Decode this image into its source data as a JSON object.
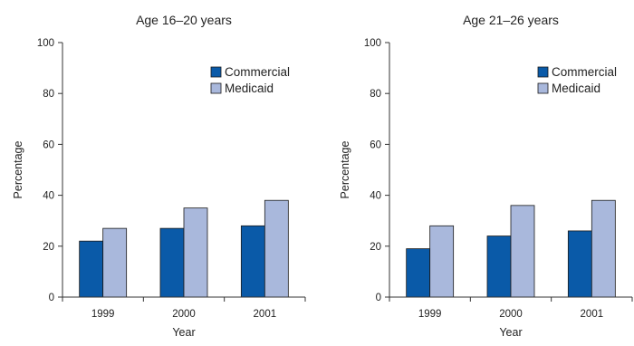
{
  "chart_data": [
    {
      "type": "bar",
      "title": "Age 16–20 years",
      "xlabel": "Year",
      "ylabel": "Percentage",
      "categories": [
        "1999",
        "2000",
        "2001"
      ],
      "yticks": [
        0,
        20,
        40,
        60,
        80,
        100
      ],
      "ylim": [
        0,
        100
      ],
      "grid": false,
      "legend_position": "top-right",
      "series": [
        {
          "name": "Commercial",
          "color": "#0a5aa8",
          "values": [
            22,
            27,
            28
          ]
        },
        {
          "name": "Medicaid",
          "color": "#a9b8dc",
          "values": [
            27,
            35,
            38
          ]
        }
      ]
    },
    {
      "type": "bar",
      "title": "Age 21–26 years",
      "xlabel": "Year",
      "ylabel": "Percentage",
      "categories": [
        "1999",
        "2000",
        "2001"
      ],
      "yticks": [
        0,
        20,
        40,
        60,
        80,
        100
      ],
      "ylim": [
        0,
        100
      ],
      "grid": false,
      "legend_position": "top-right",
      "series": [
        {
          "name": "Commercial",
          "color": "#0a5aa8",
          "values": [
            19,
            24,
            26
          ]
        },
        {
          "name": "Medicaid",
          "color": "#a9b8dc",
          "values": [
            28,
            36,
            38
          ]
        }
      ]
    }
  ]
}
